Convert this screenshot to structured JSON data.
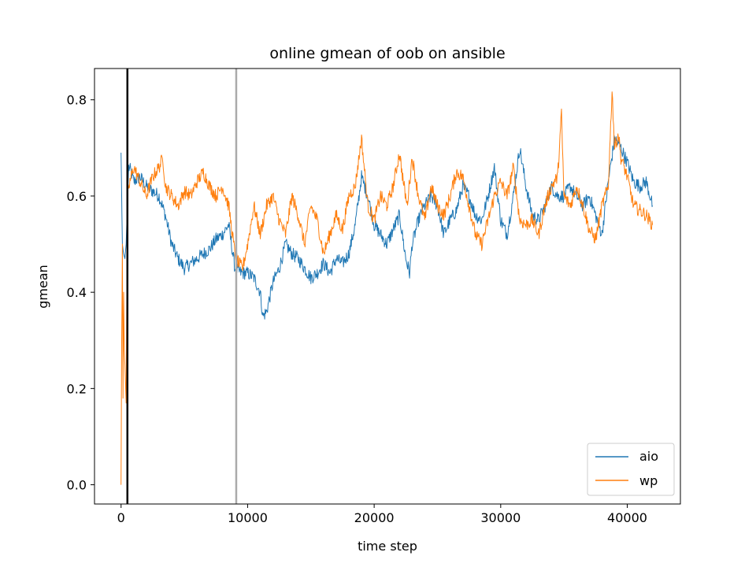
{
  "chart_data": {
    "type": "line",
    "title": "online gmean of oob on ansible",
    "xlabel": "time step",
    "ylabel": "gmean",
    "xlim": [
      -2100,
      44200
    ],
    "ylim": [
      -0.04,
      0.865
    ],
    "xticks": [
      0,
      10000,
      20000,
      30000,
      40000
    ],
    "yticks": [
      0.0,
      0.2,
      0.4,
      0.6,
      0.8
    ],
    "xtick_labels": [
      "0",
      "10000",
      "20000",
      "30000",
      "40000"
    ],
    "ytick_labels": [
      "0.0",
      "0.2",
      "0.4",
      "0.6",
      "0.8"
    ],
    "grid": false,
    "legend_position": "lower-right",
    "vlines": [
      {
        "x": 500,
        "color": "#000000"
      },
      {
        "x": 9100,
        "color": "#aaaaaa"
      }
    ],
    "series": [
      {
        "name": "aio",
        "color": "#1f77b4",
        "x": [
          0,
          100,
          200,
          300,
          400,
          600,
          800,
          1000,
          1500,
          2000,
          2500,
          3000,
          3500,
          4000,
          4500,
          5000,
          5500,
          6000,
          6500,
          7000,
          7500,
          8000,
          8500,
          9000,
          9500,
          10000,
          10500,
          11000,
          11200,
          11500,
          12000,
          12500,
          13000,
          13500,
          14000,
          14500,
          15000,
          15500,
          16000,
          16500,
          17000,
          17500,
          18000,
          18500,
          19000,
          19500,
          20000,
          20500,
          21000,
          21500,
          22000,
          22500,
          22800,
          23000,
          23500,
          24000,
          24500,
          25000,
          25500,
          26000,
          26500,
          27000,
          27500,
          28000,
          28500,
          29000,
          29500,
          30000,
          30500,
          31000,
          31500,
          32000,
          32500,
          33000,
          33500,
          34000,
          34500,
          35000,
          35500,
          36000,
          36500,
          37000,
          37500,
          38000,
          38500,
          39000,
          39500,
          40000,
          40500,
          41000,
          41500,
          42000
        ],
        "y": [
          0.69,
          0.5,
          0.48,
          0.47,
          0.5,
          0.66,
          0.65,
          0.63,
          0.64,
          0.62,
          0.61,
          0.6,
          0.56,
          0.5,
          0.47,
          0.45,
          0.46,
          0.47,
          0.48,
          0.49,
          0.51,
          0.52,
          0.54,
          0.45,
          0.44,
          0.44,
          0.43,
          0.4,
          0.35,
          0.36,
          0.42,
          0.45,
          0.5,
          0.48,
          0.47,
          0.45,
          0.43,
          0.44,
          0.46,
          0.44,
          0.47,
          0.46,
          0.48,
          0.54,
          0.64,
          0.6,
          0.54,
          0.52,
          0.5,
          0.53,
          0.56,
          0.47,
          0.44,
          0.5,
          0.55,
          0.58,
          0.6,
          0.58,
          0.52,
          0.55,
          0.57,
          0.62,
          0.6,
          0.56,
          0.55,
          0.6,
          0.66,
          0.55,
          0.52,
          0.6,
          0.7,
          0.62,
          0.56,
          0.55,
          0.58,
          0.62,
          0.6,
          0.6,
          0.62,
          0.6,
          0.58,
          0.6,
          0.56,
          0.52,
          0.63,
          0.72,
          0.7,
          0.67,
          0.63,
          0.62,
          0.63,
          0.58
        ]
      },
      {
        "name": "wp",
        "color": "#ff7f0e",
        "x": [
          0,
          50,
          100,
          150,
          200,
          250,
          300,
          400,
          500,
          700,
          1000,
          1500,
          2000,
          2500,
          3000,
          3300,
          3500,
          4000,
          4500,
          5000,
          5500,
          6000,
          6500,
          7000,
          7500,
          8000,
          8500,
          9000,
          9300,
          9600,
          10000,
          10500,
          11000,
          11500,
          12000,
          12500,
          13000,
          13500,
          14000,
          14500,
          15000,
          15500,
          16000,
          16500,
          17000,
          17500,
          18000,
          18500,
          19000,
          19500,
          20000,
          20500,
          21000,
          21500,
          22000,
          22300,
          22600,
          23000,
          23500,
          24000,
          24500,
          25000,
          25500,
          26000,
          26500,
          27000,
          27500,
          28000,
          28500,
          29000,
          29500,
          30000,
          30500,
          31000,
          31500,
          32000,
          32500,
          33000,
          33500,
          34000,
          34500,
          34800,
          35000,
          35500,
          36000,
          36500,
          37000,
          37500,
          38000,
          38500,
          38800,
          39000,
          39300,
          39500,
          40000,
          40500,
          41000,
          41500,
          42000
        ],
        "y": [
          0.0,
          0.3,
          0.5,
          0.18,
          0.4,
          0.28,
          0.25,
          0.17,
          0.6,
          0.63,
          0.66,
          0.63,
          0.6,
          0.64,
          0.66,
          0.68,
          0.62,
          0.6,
          0.58,
          0.61,
          0.6,
          0.63,
          0.65,
          0.62,
          0.6,
          0.62,
          0.58,
          0.48,
          0.46,
          0.45,
          0.5,
          0.58,
          0.52,
          0.58,
          0.6,
          0.55,
          0.52,
          0.6,
          0.56,
          0.5,
          0.58,
          0.55,
          0.48,
          0.52,
          0.56,
          0.53,
          0.6,
          0.62,
          0.72,
          0.58,
          0.55,
          0.6,
          0.58,
          0.62,
          0.69,
          0.63,
          0.58,
          0.68,
          0.6,
          0.55,
          0.62,
          0.58,
          0.56,
          0.6,
          0.65,
          0.64,
          0.58,
          0.52,
          0.5,
          0.55,
          0.6,
          0.63,
          0.6,
          0.66,
          0.55,
          0.54,
          0.55,
          0.52,
          0.58,
          0.62,
          0.64,
          0.77,
          0.6,
          0.58,
          0.62,
          0.58,
          0.53,
          0.51,
          0.58,
          0.62,
          0.82,
          0.7,
          0.73,
          0.68,
          0.64,
          0.58,
          0.57,
          0.56,
          0.54
        ]
      }
    ]
  }
}
